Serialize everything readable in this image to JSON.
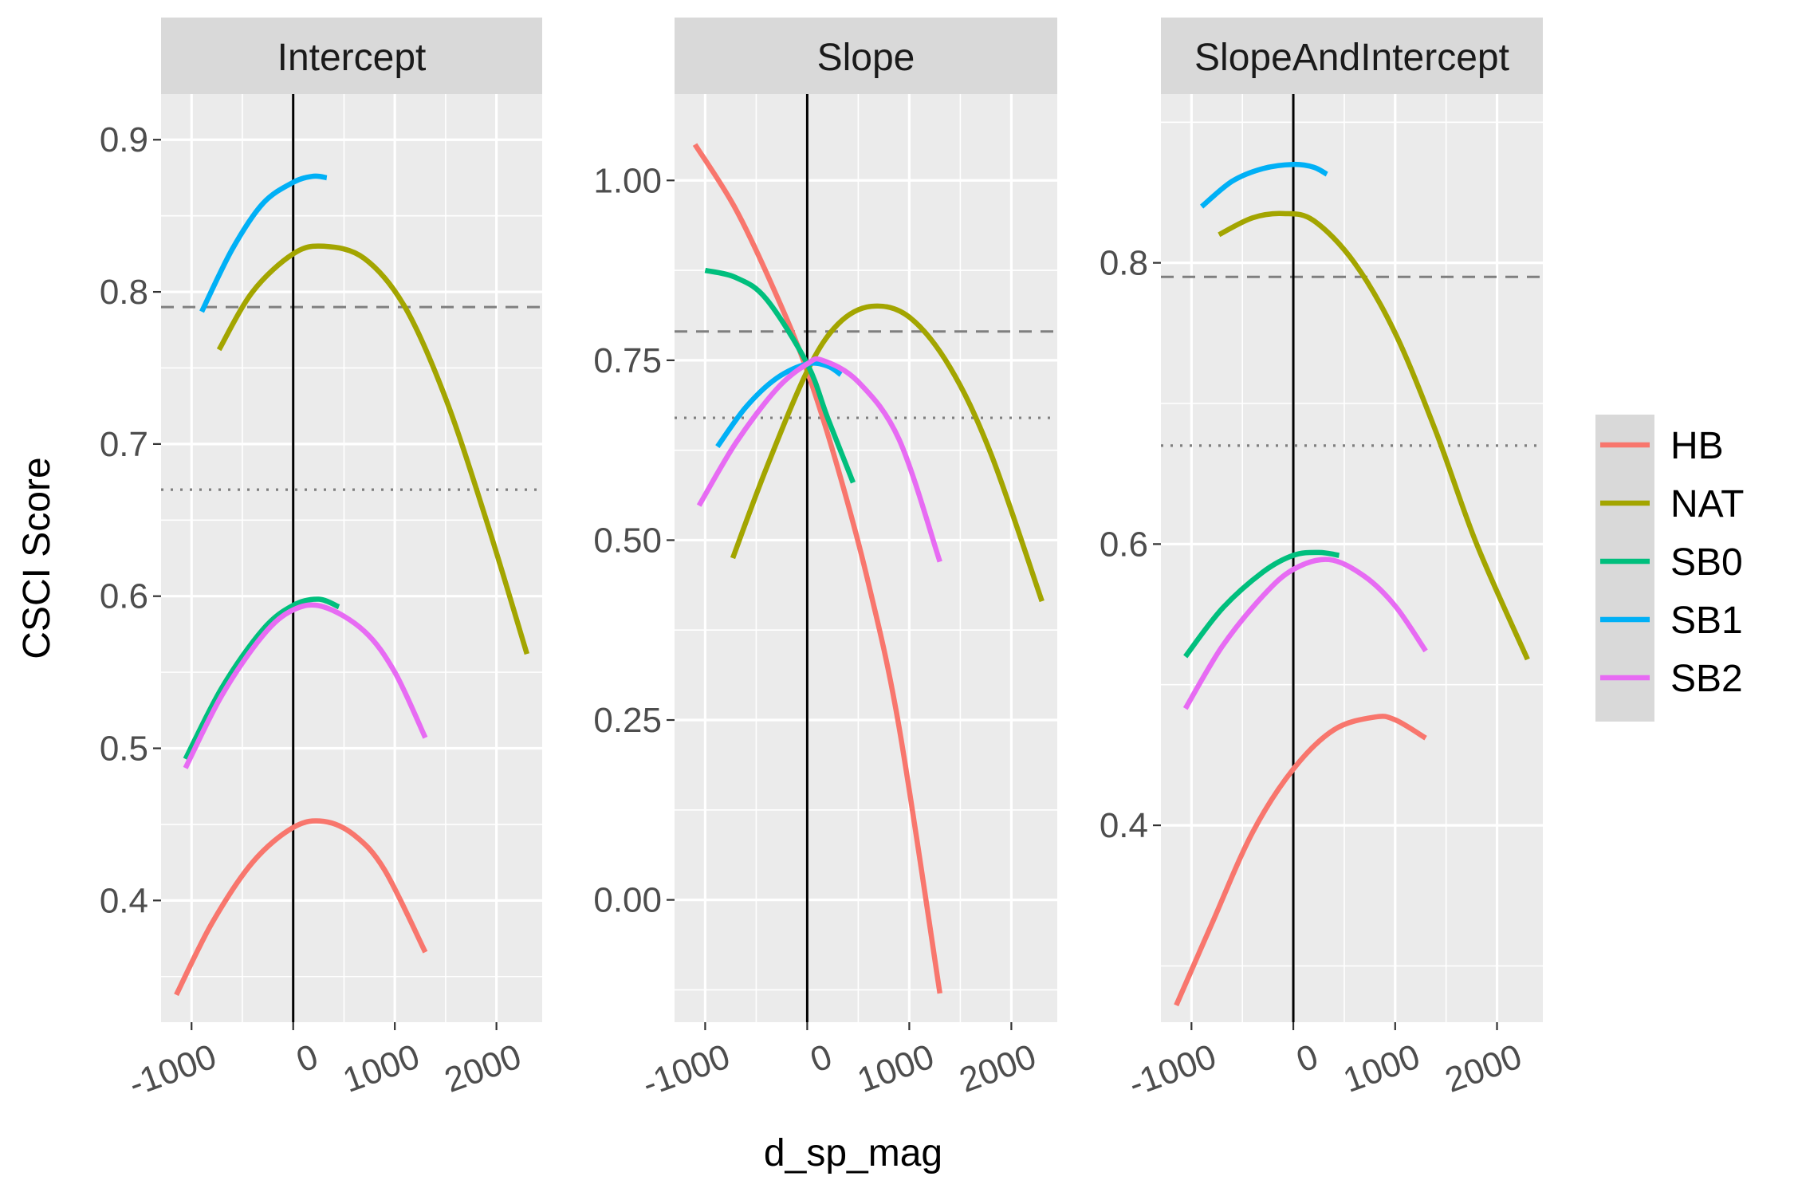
{
  "chart_data": {
    "type": "line",
    "xlabel": "d_sp_mag",
    "ylabel": "CSCI Score",
    "reference_lines": [
      {
        "style": "dashed",
        "y": 0.79
      },
      {
        "style": "dotted",
        "y": 0.67
      }
    ],
    "vertical_line": {
      "x": 0
    },
    "x_ticks": [
      -1000,
      0,
      1000,
      2000
    ],
    "x_tick_labels": [
      "-1000",
      "0",
      "1000",
      "2000"
    ],
    "x_range": [
      -1300,
      2450
    ],
    "legend": [
      {
        "name": "HB",
        "color": "#F8766D"
      },
      {
        "name": "NAT",
        "color": "#A3A500"
      },
      {
        "name": "SB0",
        "color": "#00BF7D"
      },
      {
        "name": "SB1",
        "color": "#00B0F6"
      },
      {
        "name": "SB2",
        "color": "#E76BF3"
      }
    ],
    "panels": [
      {
        "title": "Intercept",
        "ylim": [
          0.32,
          0.93
        ],
        "y_ticks": [
          0.4,
          0.5,
          0.6,
          0.7,
          0.8,
          0.9
        ],
        "y_tick_labels": [
          "0.4",
          "0.5",
          "0.6",
          "0.7",
          "0.8",
          "0.9"
        ],
        "series": [
          {
            "name": "HB",
            "x": [
              -1150,
              -800,
              -400,
              0,
              300,
              600,
              900,
              1300
            ],
            "y": [
              0.338,
              0.385,
              0.425,
              0.448,
              0.452,
              0.443,
              0.42,
              0.366
            ]
          },
          {
            "name": "NAT",
            "x": [
              -730,
              -400,
              0,
              300,
              700,
              1100,
              1500,
              1900,
              2300
            ],
            "y": [
              0.762,
              0.8,
              0.825,
              0.83,
              0.822,
              0.79,
              0.73,
              0.65,
              0.562
            ]
          },
          {
            "name": "SB0",
            "x": [
              -1060,
              -700,
              -300,
              0,
              250,
              450
            ],
            "y": [
              0.493,
              0.54,
              0.578,
              0.594,
              0.598,
              0.593
            ]
          },
          {
            "name": "SB1",
            "x": [
              -900,
              -600,
              -300,
              0,
              200,
              330
            ],
            "y": [
              0.787,
              0.828,
              0.858,
              0.872,
              0.876,
              0.875
            ]
          },
          {
            "name": "SB2",
            "x": [
              -1060,
              -700,
              -300,
              0,
              300,
              700,
              1000,
              1300
            ],
            "y": [
              0.487,
              0.535,
              0.574,
              0.591,
              0.593,
              0.577,
              0.55,
              0.507
            ]
          }
        ]
      },
      {
        "title": "Slope",
        "ylim": [
          -0.17,
          1.12
        ],
        "y_ticks": [
          0.0,
          0.25,
          0.5,
          0.75,
          1.0
        ],
        "y_tick_labels": [
          "0.00",
          "0.25",
          "0.50",
          "0.75",
          "1.00"
        ],
        "series": [
          {
            "name": "HB",
            "x": [
              -1100,
              -700,
              -300,
              0,
              300,
              600,
              900,
              1300
            ],
            "y": [
              1.05,
              0.96,
              0.84,
              0.735,
              0.6,
              0.44,
              0.24,
              -0.13
            ]
          },
          {
            "name": "NAT",
            "x": [
              -730,
              -400,
              0,
              300,
              630,
              1000,
              1400,
              1800,
              2300
            ],
            "y": [
              0.475,
              0.6,
              0.735,
              0.8,
              0.825,
              0.81,
              0.74,
              0.62,
              0.415
            ]
          },
          {
            "name": "SB0",
            "x": [
              -1000,
              -700,
              -400,
              0,
              200,
              450
            ],
            "y": [
              0.875,
              0.865,
              0.835,
              0.745,
              0.67,
              0.58
            ]
          },
          {
            "name": "SB1",
            "x": [
              -880,
              -600,
              -300,
              0,
              200,
              330
            ],
            "y": [
              0.63,
              0.685,
              0.725,
              0.745,
              0.742,
              0.73
            ]
          },
          {
            "name": "SB2",
            "x": [
              -1060,
              -700,
              -300,
              0,
              150,
              500,
              900,
              1300
            ],
            "y": [
              0.548,
              0.635,
              0.71,
              0.745,
              0.75,
              0.72,
              0.64,
              0.47
            ]
          }
        ]
      },
      {
        "title": "SlopeAndIntercept",
        "ylim": [
          0.26,
          0.92
        ],
        "y_ticks": [
          0.4,
          0.6,
          0.8
        ],
        "y_tick_labels": [
          "0.4",
          "0.6",
          "0.8"
        ],
        "series": [
          {
            "name": "HB",
            "x": [
              -1150,
              -800,
              -400,
              0,
              400,
              800,
              1000,
              1300
            ],
            "y": [
              0.272,
              0.33,
              0.395,
              0.44,
              0.468,
              0.477,
              0.475,
              0.462
            ]
          },
          {
            "name": "NAT",
            "x": [
              -730,
              -400,
              -100,
              200,
              600,
              1000,
              1400,
              1800,
              2300
            ],
            "y": [
              0.82,
              0.832,
              0.835,
              0.83,
              0.8,
              0.75,
              0.68,
              0.6,
              0.518
            ]
          },
          {
            "name": "SB0",
            "x": [
              -1060,
              -700,
              -300,
              0,
              250,
              450
            ],
            "y": [
              0.52,
              0.554,
              0.58,
              0.592,
              0.594,
              0.592
            ]
          },
          {
            "name": "SB1",
            "x": [
              -900,
              -600,
              -300,
              0,
              200,
              330
            ],
            "y": [
              0.84,
              0.858,
              0.867,
              0.87,
              0.868,
              0.863
            ]
          },
          {
            "name": "SB2",
            "x": [
              -1060,
              -700,
              -300,
              0,
              350,
              700,
              1000,
              1300
            ],
            "y": [
              0.483,
              0.527,
              0.563,
              0.582,
              0.589,
              0.577,
              0.556,
              0.524
            ]
          }
        ]
      }
    ]
  }
}
